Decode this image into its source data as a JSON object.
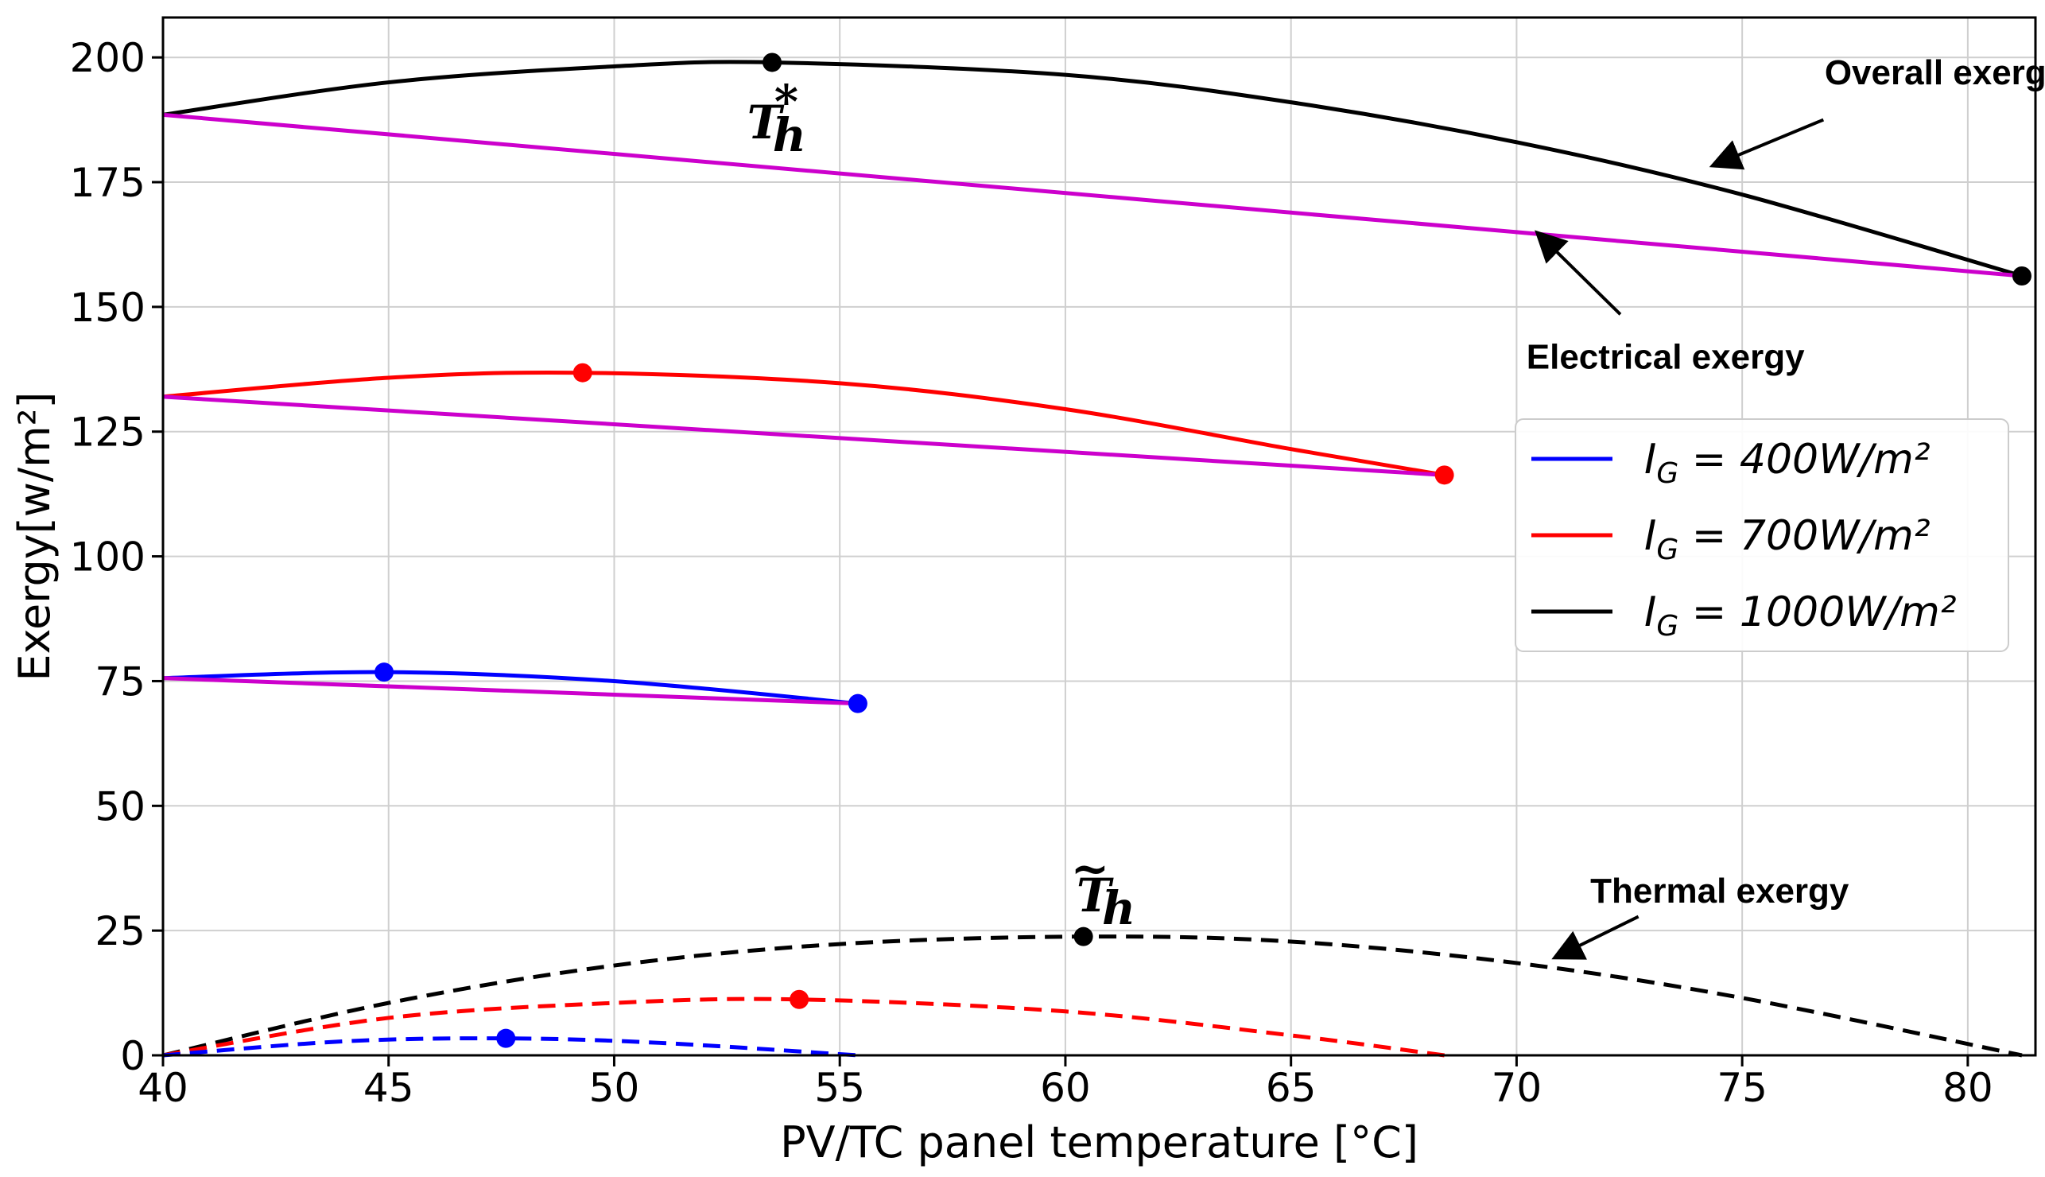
{
  "chart_data": {
    "type": "line",
    "title": "",
    "xlabel": "PV/TC panel temperature [°C]",
    "ylabel": "Exergy[w/m²]",
    "xlim": [
      40,
      81.5
    ],
    "ylim": [
      0,
      208
    ],
    "grid": true,
    "x_ticks": [
      40,
      45,
      50,
      55,
      60,
      65,
      70,
      75,
      80
    ],
    "y_ticks": [
      0,
      25,
      50,
      75,
      100,
      125,
      150,
      175,
      200
    ],
    "legend_position": "right",
    "legend": [
      {
        "label_main": "I",
        "label_sub": "G",
        "label_rest": " = 400W/m²",
        "color": "#0000ff"
      },
      {
        "label_main": "I",
        "label_sub": "G",
        "label_rest": " = 700W/m²",
        "color": "#ff0000"
      },
      {
        "label_main": "I",
        "label_sub": "G",
        "label_rest": " = 1000W/m²",
        "color": "#000000"
      }
    ],
    "series": [
      {
        "name": "Overall exergy 1000",
        "style": "solid",
        "color": "#000000",
        "x": [
          40,
          45,
          50,
          53.5,
          60,
          65,
          70,
          75,
          81.2
        ],
        "y": [
          188.5,
          195,
          198.2,
          199,
          196.5,
          191,
          183,
          172.5,
          156.2
        ]
      },
      {
        "name": "Electrical exergy 1000",
        "style": "solid",
        "color": "#cc00cc",
        "x": [
          40,
          81.2
        ],
        "y": [
          188.5,
          156.2
        ]
      },
      {
        "name": "Thermal exergy 1000",
        "style": "dashed",
        "color": "#000000",
        "x": [
          40,
          45,
          50,
          55,
          60.4,
          65,
          70,
          75,
          81.2
        ],
        "y": [
          0,
          10.5,
          18,
          22.3,
          23.8,
          22.8,
          18.5,
          11.5,
          0
        ]
      },
      {
        "name": "Overall exergy 700",
        "style": "solid",
        "color": "#ff0000",
        "x": [
          40,
          45,
          49.3,
          55,
          60,
          65,
          68.4
        ],
        "y": [
          132,
          135.8,
          136.8,
          134.7,
          129.5,
          121.5,
          116.3
        ]
      },
      {
        "name": "Electrical exergy 700",
        "style": "solid",
        "color": "#cc00cc",
        "x": [
          40,
          68.4
        ],
        "y": [
          132,
          116.3
        ]
      },
      {
        "name": "Thermal exergy 700",
        "style": "dashed",
        "color": "#ff0000",
        "x": [
          40,
          45,
          50,
          54.1,
          60,
          65,
          68.4
        ],
        "y": [
          0,
          7.5,
          10.5,
          11.2,
          8.8,
          4,
          0
        ]
      },
      {
        "name": "Overall exergy 400",
        "style": "solid",
        "color": "#0000ff",
        "x": [
          40,
          44.9,
          50,
          55.4
        ],
        "y": [
          75.6,
          76.8,
          75,
          70.5
        ]
      },
      {
        "name": "Electrical exergy 400",
        "style": "solid",
        "color": "#cc00cc",
        "x": [
          40,
          55.4
        ],
        "y": [
          75.6,
          70.5
        ]
      },
      {
        "name": "Thermal exergy 400",
        "style": "dashed",
        "color": "#0000ff",
        "x": [
          40,
          44,
          47.6,
          51,
          55.4
        ],
        "y": [
          0,
          2.8,
          3.4,
          2.5,
          0
        ]
      }
    ],
    "markers": [
      {
        "x": 53.5,
        "y": 199,
        "color": "#000000"
      },
      {
        "x": 81.2,
        "y": 156.2,
        "color": "#000000"
      },
      {
        "x": 49.3,
        "y": 136.8,
        "color": "#ff0000"
      },
      {
        "x": 68.4,
        "y": 116.3,
        "color": "#ff0000"
      },
      {
        "x": 44.9,
        "y": 76.8,
        "color": "#0000ff"
      },
      {
        "x": 55.4,
        "y": 70.5,
        "color": "#0000ff"
      },
      {
        "x": 60.4,
        "y": 23.8,
        "color": "#000000"
      },
      {
        "x": 54.1,
        "y": 11.2,
        "color": "#ff0000"
      },
      {
        "x": 47.6,
        "y": 3.4,
        "color": "#0000ff"
      }
    ],
    "annotations": [
      {
        "text": "Overall exergy",
        "text_x": 79.5,
        "text_y": 197,
        "arrow_from": [
          76.8,
          187.5
        ],
        "arrow_to": [
          74.4,
          178.5
        ]
      },
      {
        "text": "Electrical exergy",
        "text_x": 73.3,
        "text_y": 140,
        "arrow_from": [
          72.3,
          148.5
        ],
        "arrow_to": [
          70.5,
          164.5
        ]
      },
      {
        "text": "Thermal exergy",
        "text_x": 74.5,
        "text_y": 33,
        "arrow_from": [
          72.7,
          27.8
        ],
        "arrow_to": [
          70.9,
          19.8
        ]
      }
    ],
    "point_labels": [
      {
        "base": "T",
        "sub": "h",
        "sup": "*",
        "x": 53.3,
        "y": 187
      },
      {
        "base": "T",
        "sub": "h",
        "sup": "~",
        "x": 60.6,
        "y": 32
      }
    ]
  }
}
